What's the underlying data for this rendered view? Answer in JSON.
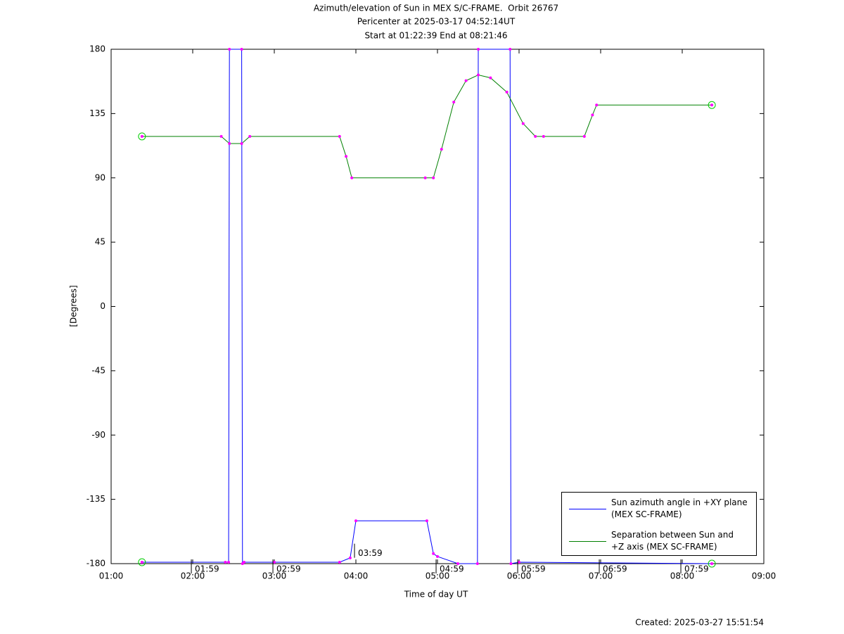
{
  "chart_data": {
    "type": "line",
    "title": "Azimuth/elevation of Sun in MEX S/C-FRAME.  Orbit 26767",
    "subtitle": "Pericenter at 2025-03-17 04:52:14UT",
    "subtitle2": "Start at 01:22:39 End at 08:21:46",
    "xlabel": "Time of day UT",
    "ylabel": "[Degrees]",
    "footer": "Created: 2025-03-27 15:51:54",
    "xlim": [
      1,
      9
    ],
    "xticks": [
      {
        "value": 1,
        "label": "01:00"
      },
      {
        "value": 2,
        "label": "02:00"
      },
      {
        "value": 3,
        "label": "03:00"
      },
      {
        "value": 4,
        "label": "04:00"
      },
      {
        "value": 5,
        "label": "05:00"
      },
      {
        "value": 6,
        "label": "06:00"
      },
      {
        "value": 7,
        "label": "07:00"
      },
      {
        "value": 8,
        "label": "08:00"
      },
      {
        "value": 9,
        "label": "09:00"
      }
    ],
    "ylim": [
      -180,
      180
    ],
    "yticks": [
      180,
      135,
      90,
      45,
      0,
      -45,
      -90,
      -135,
      -180
    ],
    "grid": false,
    "legend": "lower right",
    "marker_color": "#ff00ff",
    "endpoint_color": "#00cc00",
    "series": [
      {
        "name": "Sun azimuth angle in +XY plane (MEX SC-FRAME)",
        "color": "#0000ff",
        "x": [
          1.378,
          2.4,
          2.44,
          2.45,
          2.6,
          2.61,
          2.63,
          3.0,
          3.8,
          3.93,
          4.0,
          4.87,
          4.95,
          5.0,
          5.25,
          5.49,
          5.5,
          5.89,
          5.9,
          6.0,
          8.363
        ],
        "values": [
          -179,
          -179,
          -179,
          180,
          180,
          -180,
          -179,
          -179,
          -179,
          -176,
          -150,
          -150,
          -173,
          -175,
          -180,
          -180,
          180,
          180,
          -180,
          -179,
          -180
        ]
      },
      {
        "name": "Separation between Sun and +Z axis (MEX SC-FRAME)",
        "color": "#008000",
        "x": [
          1.378,
          2.35,
          2.45,
          2.6,
          2.7,
          3.8,
          3.88,
          3.95,
          4.85,
          4.95,
          5.05,
          5.2,
          5.35,
          5.5,
          5.65,
          5.85,
          6.05,
          6.2,
          6.3,
          6.8,
          6.9,
          6.95,
          8.363
        ],
        "values": [
          119,
          119,
          114,
          114,
          119,
          119,
          105,
          90,
          90,
          90,
          110,
          143,
          158,
          162,
          160,
          150,
          128,
          119,
          119,
          119,
          134,
          141,
          141
        ]
      }
    ],
    "annotations": [
      {
        "text": "01:59",
        "x": 1.983,
        "y": -180
      },
      {
        "text": "02:59",
        "x": 2.983,
        "y": -180
      },
      {
        "text": "03:59",
        "x": 3.983,
        "y": -169
      },
      {
        "text": "04:59",
        "x": 4.983,
        "y": -180
      },
      {
        "text": "05:59",
        "x": 5.983,
        "y": -180
      },
      {
        "text": "06:59",
        "x": 6.983,
        "y": -180
      },
      {
        "text": "07:59",
        "x": 7.983,
        "y": -180
      }
    ]
  }
}
